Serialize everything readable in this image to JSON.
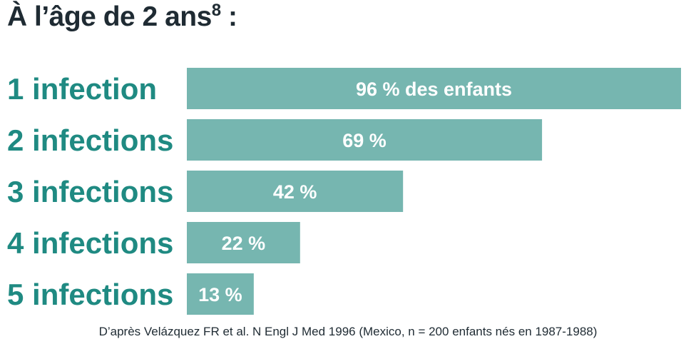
{
  "title": {
    "main": "À l’âge de 2 ans",
    "superscript": "8",
    "suffix": " :"
  },
  "chart_data": {
    "type": "bar",
    "orientation": "horizontal",
    "categories": [
      "1 infection",
      "2 infections",
      "3 infections",
      "4 infections",
      "5 infections"
    ],
    "values": [
      96,
      69,
      42,
      22,
      13
    ],
    "value_labels": [
      "96 % des enfants",
      "69 %",
      "42 %",
      "22 %",
      "13 %"
    ],
    "xlim": [
      0,
      96
    ],
    "unit": "%",
    "grid": false,
    "legend": "none",
    "colors": {
      "bar": "#76b6b0",
      "category_label": "#1f8a82",
      "value_label": "#ffffff"
    }
  },
  "source": "D’après Velázquez FR et al. N Engl J Med 1996  (Mexico, n = 200 enfants nés en 1987-1988)"
}
